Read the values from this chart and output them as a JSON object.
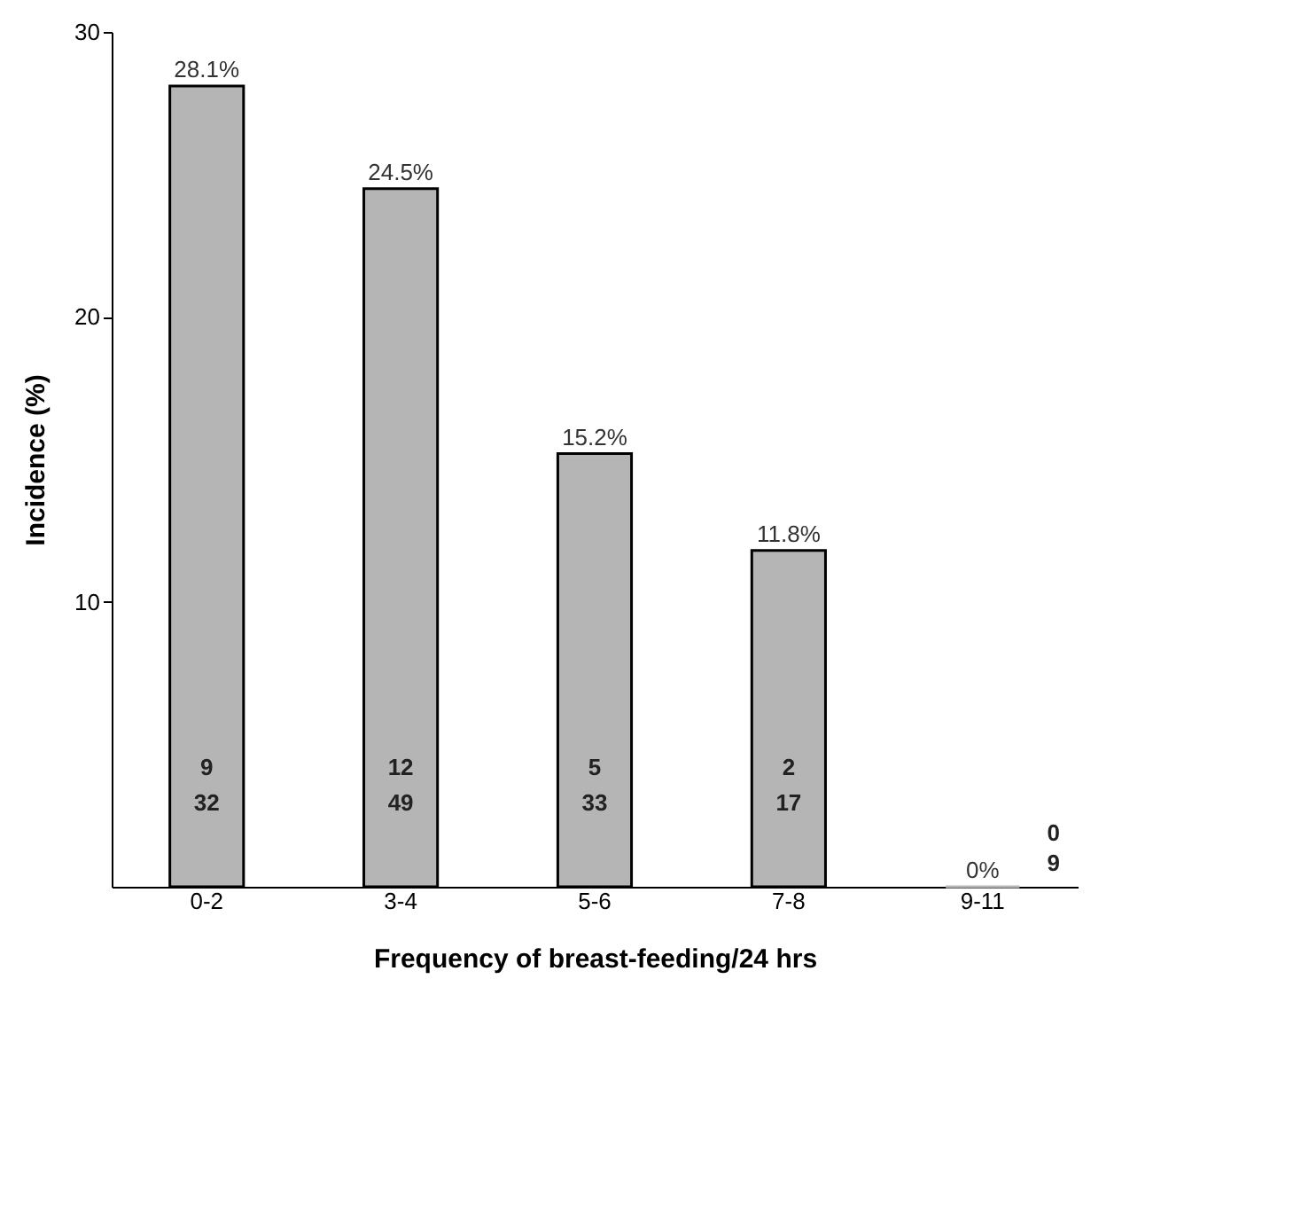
{
  "chart_data": {
    "type": "bar",
    "xlabel": "Frequency of breast-feeding/24 hrs",
    "ylabel": "Incidence (%)",
    "categories": [
      "0-2",
      "3-4",
      "5-6",
      "7-8",
      "9-11"
    ],
    "values": [
      28.1,
      24.5,
      15.2,
      11.8,
      0
    ],
    "value_labels": [
      "28.1%",
      "24.5%",
      "15.2%",
      "11.8%",
      "0%"
    ],
    "color": "#b5b5b5",
    "ylim": [
      0,
      30
    ],
    "yticks": [
      10,
      20,
      30
    ],
    "grid": false,
    "annotations": [
      "9",
      "32",
      "12",
      "49",
      "5",
      "33",
      "2",
      "17",
      "0",
      "9"
    ]
  }
}
